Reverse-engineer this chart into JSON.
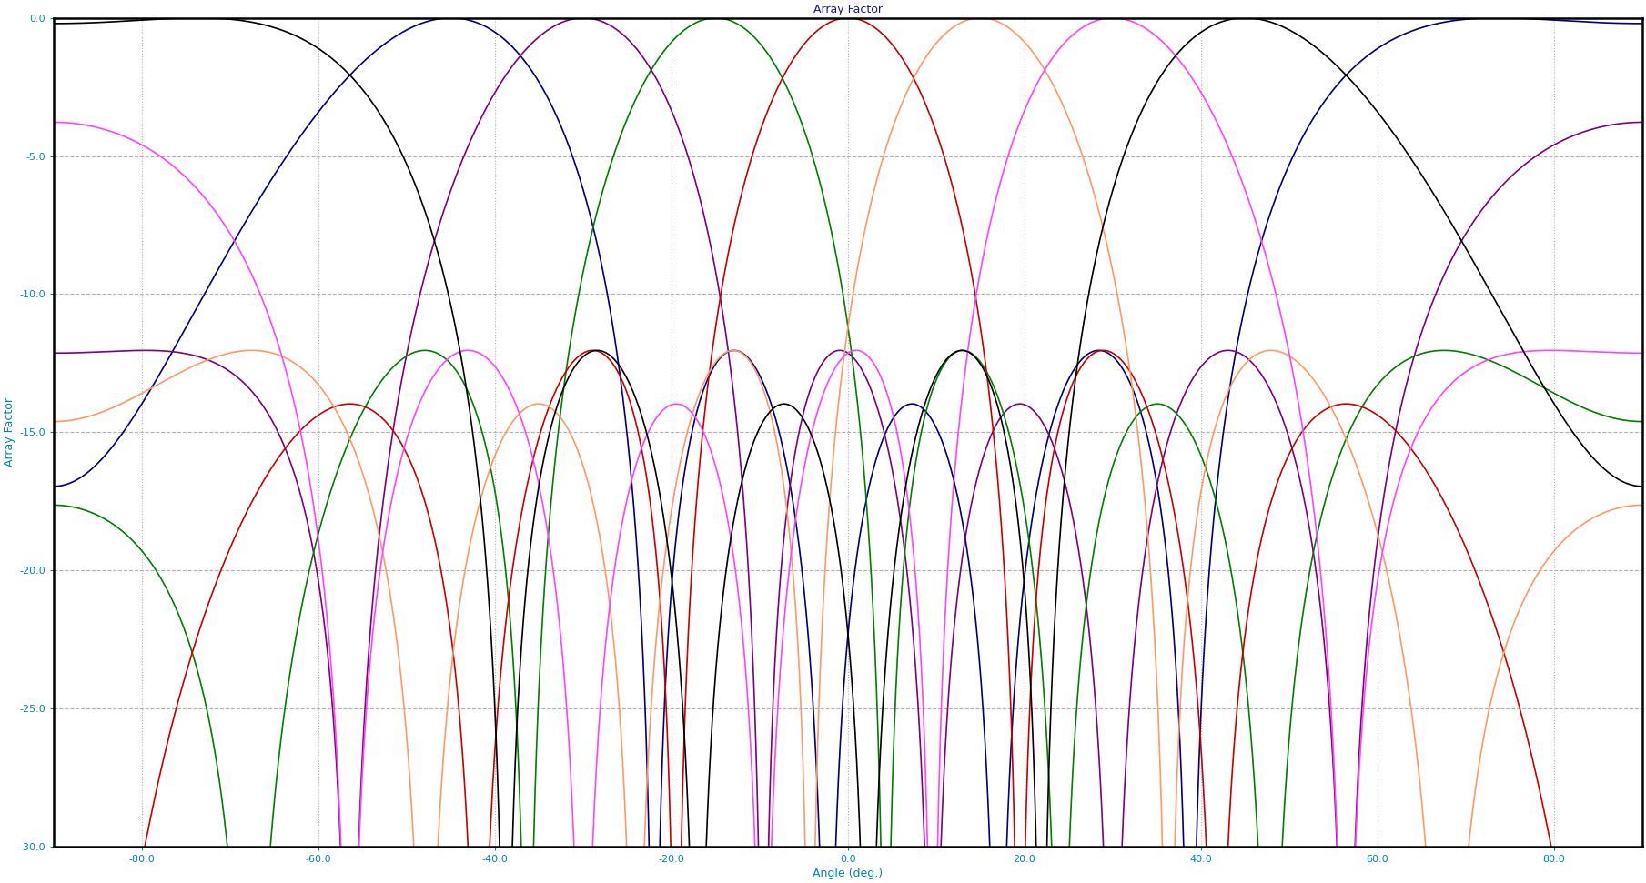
{
  "title": "Array Factor",
  "xlabel": "Angle (deg.)",
  "ylabel": "Array Factor",
  "xlim": [
    -90,
    90
  ],
  "ylim": [
    -30,
    0
  ],
  "yticks": [
    0,
    -5.0,
    -10.0,
    -15.0,
    -20.0,
    -25.0,
    -30.0
  ],
  "xticks": [
    -80.0,
    -60.0,
    -40.0,
    -20.0,
    0.0,
    20.0,
    40.0,
    60.0,
    80.0
  ],
  "beam_angles": [
    -45,
    -30,
    -15,
    0,
    15,
    30,
    45
  ],
  "colors": [
    "#000080",
    "#800080",
    "#008000",
    "#cc0000",
    "#ff9966",
    "#ff44ff",
    "#000000"
  ],
  "N": 5,
  "d_over_lambda": 0.6,
  "background_color": "#ffffff",
  "grid_h_color": "#aaaaaa",
  "grid_v_color": "#aaaaaa",
  "title_color": "#000000",
  "title_fontcolor": "#1a1a8c",
  "axis_label_color": "#0088aa",
  "tick_label_color": "#0088aa",
  "title_fontsize": 9,
  "axis_label_fontsize": 9,
  "tick_fontsize": 8,
  "linewidth": 1.2
}
